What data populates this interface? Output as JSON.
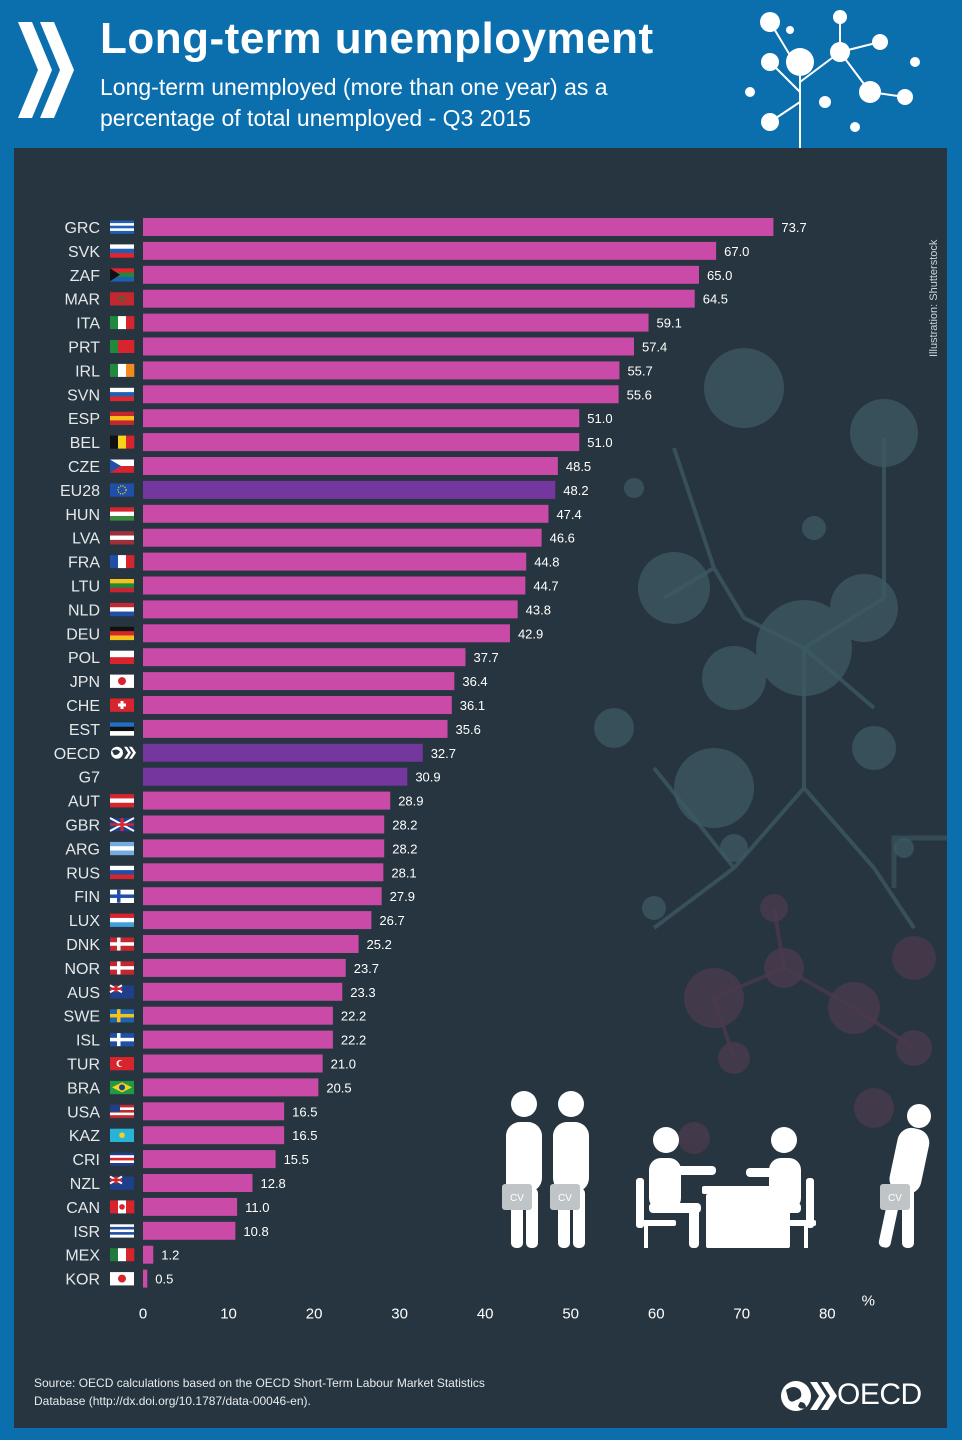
{
  "header": {
    "title": "Long-term unemployment",
    "subtitle": "Long-term unemployed (more than one year) as a percentage of total unemployed - Q3 2015"
  },
  "credit": "Illustration: Shutterstock",
  "source": "Source: OECD calculations based on the OECD Short-Term Labour Market Statistics Database (http://dx.doi.org/10.1787/data-00046-en).",
  "logo_text": "OECD",
  "cv_label": "CV",
  "colors": {
    "bar": "#c94aa7",
    "aggregate_bar": "#73379d",
    "panel": "#26353f",
    "header": "#0b6fae"
  },
  "chart_data": {
    "type": "bar",
    "orientation": "horizontal",
    "x_unit": "%",
    "xlim": [
      0,
      80
    ],
    "xticks": [
      0,
      10,
      20,
      30,
      40,
      50,
      60,
      70,
      80
    ],
    "grid": false,
    "categories": [
      "GRC",
      "SVK",
      "ZAF",
      "MAR",
      "ITA",
      "PRT",
      "IRL",
      "SVN",
      "ESP",
      "BEL",
      "CZE",
      "EU28",
      "HUN",
      "LVA",
      "FRA",
      "LTU",
      "NLD",
      "DEU",
      "POL",
      "JPN",
      "CHE",
      "EST",
      "OECD",
      "G7",
      "AUT",
      "GBR",
      "ARG",
      "RUS",
      "FIN",
      "LUX",
      "DNK",
      "NOR",
      "AUS",
      "SWE",
      "ISL",
      "TUR",
      "BRA",
      "USA",
      "KAZ",
      "CRI",
      "NZL",
      "CAN",
      "ISR",
      "MEX",
      "KOR"
    ],
    "values": [
      73.7,
      67.0,
      65.0,
      64.5,
      59.1,
      57.4,
      55.7,
      55.6,
      51.0,
      51.0,
      48.5,
      48.2,
      47.4,
      46.6,
      44.8,
      44.7,
      43.8,
      42.9,
      37.7,
      36.4,
      36.1,
      35.6,
      32.7,
      30.9,
      28.9,
      28.2,
      28.2,
      28.1,
      27.9,
      26.7,
      25.2,
      23.7,
      23.3,
      22.2,
      22.2,
      21.0,
      20.5,
      16.5,
      16.5,
      15.5,
      12.8,
      11.0,
      10.8,
      1.2,
      0.5
    ],
    "labels": [
      "73.7",
      "67.0",
      "65.0",
      "64.5",
      "59.1",
      "57.4",
      "55.7",
      "55.6",
      "51.0",
      "51.0",
      "48.5",
      "48.2",
      "47.4",
      "46.6",
      "44.8",
      "44.7",
      "43.8",
      "42.9",
      "37.7",
      "36.4",
      "36.1",
      "35.6",
      "32.7",
      "30.9",
      "28.9",
      "28.2",
      "28.2",
      "28.1",
      "27.9",
      "26.7",
      "25.2",
      "23.7",
      "23.3",
      "22.2",
      "22.2",
      "21.0",
      "20.5",
      "16.5",
      "16.5",
      "15.5",
      "12.8",
      "11.0",
      "10.8",
      "1.2",
      "0.5"
    ],
    "highlighted": [
      "EU28",
      "OECD",
      "G7"
    ],
    "flags": {
      "GRC": {
        "type": "hstripes",
        "colors": [
          "#1f5fb5",
          "#ffffff",
          "#1f5fb5",
          "#ffffff",
          "#1f5fb5"
        ]
      },
      "SVK": {
        "type": "hstripes",
        "colors": [
          "#ffffff",
          "#1f5fb5",
          "#e0262c"
        ]
      },
      "ZAF": {
        "type": "hstripes",
        "colors": [
          "#e0262c",
          "#1f8a3c",
          "#1f5fb5"
        ]
      },
      "MAR": {
        "type": "solid",
        "colors": [
          "#c4272f"
        ]
      },
      "ITA": {
        "type": "vstripes",
        "colors": [
          "#1f8a3c",
          "#ffffff",
          "#d8242c"
        ]
      },
      "PRT": {
        "type": "vstripes",
        "colors": [
          "#1f8a3c",
          "#d8242c",
          "#d8242c"
        ]
      },
      "IRL": {
        "type": "vstripes",
        "colors": [
          "#1f8a3c",
          "#ffffff",
          "#f08c1f"
        ]
      },
      "SVN": {
        "type": "hstripes",
        "colors": [
          "#ffffff",
          "#1f5fb5",
          "#e0262c"
        ]
      },
      "ESP": {
        "type": "hstripes",
        "colors": [
          "#c6262e",
          "#f6c21a",
          "#c6262e"
        ]
      },
      "BEL": {
        "type": "vstripes",
        "colors": [
          "#111111",
          "#f6d21a",
          "#d8242c"
        ]
      },
      "CZE": {
        "type": "hstripes",
        "colors": [
          "#ffffff",
          "#d8242c"
        ]
      },
      "EU28": {
        "type": "solid",
        "colors": [
          "#1f4fa8"
        ]
      },
      "HUN": {
        "type": "hstripes",
        "colors": [
          "#d8242c",
          "#ffffff",
          "#3c8a3c"
        ]
      },
      "LVA": {
        "type": "hstripes",
        "colors": [
          "#9e3039",
          "#ffffff",
          "#9e3039"
        ]
      },
      "FRA": {
        "type": "vstripes",
        "colors": [
          "#1f4fa8",
          "#ffffff",
          "#d8242c"
        ]
      },
      "LTU": {
        "type": "hstripes",
        "colors": [
          "#f6c21a",
          "#1f8a3c",
          "#c4272f"
        ]
      },
      "NLD": {
        "type": "hstripes",
        "colors": [
          "#c4272f",
          "#ffffff",
          "#1f4fa8"
        ]
      },
      "DEU": {
        "type": "hstripes",
        "colors": [
          "#111111",
          "#d8242c",
          "#f6c21a"
        ]
      },
      "POL": {
        "type": "hstripes",
        "colors": [
          "#ffffff",
          "#d8242c"
        ]
      },
      "JPN": {
        "type": "solid",
        "colors": [
          "#ffffff"
        ]
      },
      "CHE": {
        "type": "solid",
        "colors": [
          "#d8242c"
        ]
      },
      "EST": {
        "type": "hstripes",
        "colors": [
          "#1f6fc8",
          "#111111",
          "#ffffff"
        ]
      },
      "AUT": {
        "type": "hstripes",
        "colors": [
          "#d8242c",
          "#ffffff",
          "#d8242c"
        ]
      },
      "GBR": {
        "type": "solid",
        "colors": [
          "#1f3f8a"
        ]
      },
      "ARG": {
        "type": "hstripes",
        "colors": [
          "#74acdf",
          "#ffffff",
          "#74acdf"
        ]
      },
      "RUS": {
        "type": "hstripes",
        "colors": [
          "#ffffff",
          "#1f4fa8",
          "#d8242c"
        ]
      },
      "FIN": {
        "type": "solid",
        "colors": [
          "#ffffff"
        ]
      },
      "LUX": {
        "type": "hstripes",
        "colors": [
          "#d8242c",
          "#ffffff",
          "#3fa0dc"
        ]
      },
      "DNK": {
        "type": "solid",
        "colors": [
          "#c4272f"
        ]
      },
      "NOR": {
        "type": "solid",
        "colors": [
          "#c4272f"
        ]
      },
      "AUS": {
        "type": "solid",
        "colors": [
          "#1f3f8a"
        ]
      },
      "SWE": {
        "type": "solid",
        "colors": [
          "#1f62b0"
        ]
      },
      "ISL": {
        "type": "solid",
        "colors": [
          "#1f4fa8"
        ]
      },
      "TUR": {
        "type": "solid",
        "colors": [
          "#d8242c"
        ]
      },
      "BRA": {
        "type": "solid",
        "colors": [
          "#1f9a44"
        ]
      },
      "USA": {
        "type": "hstripes",
        "colors": [
          "#c4272f",
          "#ffffff",
          "#c4272f",
          "#ffffff",
          "#c4272f"
        ]
      },
      "KAZ": {
        "type": "solid",
        "colors": [
          "#27b4d8"
        ]
      },
      "CRI": {
        "type": "hstripes",
        "colors": [
          "#1f3f8a",
          "#ffffff",
          "#d8242c",
          "#ffffff",
          "#1f3f8a"
        ]
      },
      "NZL": {
        "type": "solid",
        "colors": [
          "#1f3f8a"
        ]
      },
      "CAN": {
        "type": "vstripes",
        "colors": [
          "#d8242c",
          "#ffffff",
          "#d8242c"
        ]
      },
      "ISR": {
        "type": "hstripes",
        "colors": [
          "#ffffff",
          "#1f4fa8",
          "#ffffff",
          "#1f4fa8",
          "#ffffff"
        ]
      },
      "MEX": {
        "type": "vstripes",
        "colors": [
          "#1f7a3c",
          "#ffffff",
          "#d8242c"
        ]
      },
      "KOR": {
        "type": "solid",
        "colors": [
          "#ffffff"
        ]
      }
    }
  }
}
